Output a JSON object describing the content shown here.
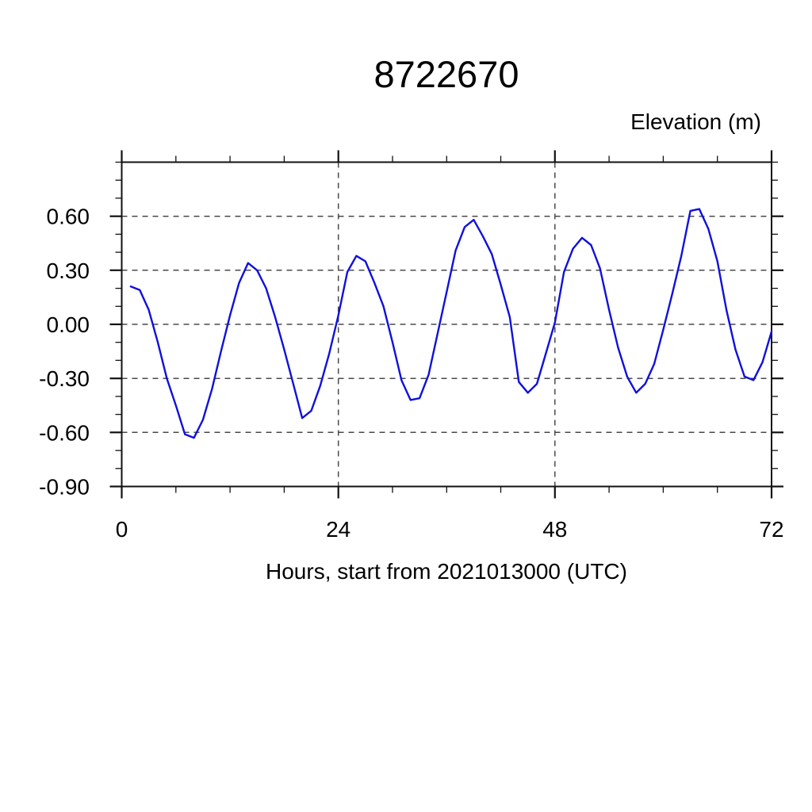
{
  "header": {
    "title": "8722670"
  },
  "colors": {
    "background": "#ffffff",
    "line": "#1010dd",
    "grid": "#4a4a4a",
    "frame": "#111111",
    "text": "#000000"
  },
  "chart_data": {
    "type": "line",
    "title": "8722670",
    "ylabel": "Elevation (m)",
    "xlabel": "Hours, start from 2021013000 (UTC)",
    "xlim": [
      0,
      72
    ],
    "ylim": [
      -0.9,
      0.9
    ],
    "x_major_ticks": [
      0,
      24,
      48,
      72
    ],
    "x_tick_labels": [
      "0",
      "24",
      "48",
      "72"
    ],
    "x_minor_tick_step": 6,
    "y_major_ticks": [
      0.6,
      0.3,
      0,
      -0.3,
      -0.6,
      -0.9
    ],
    "y_tick_labels": [
      "0.60",
      "0.30",
      "0.00",
      "-0.30",
      "-0.60",
      "-0.90"
    ],
    "y_minor_tick_step": 0.1,
    "grid": {
      "style": "dashed",
      "x_lines": [
        24,
        48
      ],
      "y_lines": [
        0.6,
        0.3,
        0,
        -0.3,
        -0.6
      ]
    },
    "legend": "none",
    "series": [
      {
        "name": "elevation",
        "color": "#1010dd",
        "x": [
          1,
          2,
          3,
          4,
          5,
          6,
          7,
          8,
          9,
          10,
          11,
          12,
          13,
          14,
          15,
          16,
          17,
          18,
          19,
          20,
          21,
          22,
          23,
          24,
          25,
          26,
          27,
          28,
          29,
          30,
          31,
          32,
          33,
          34,
          35,
          36,
          37,
          38,
          39,
          40,
          41,
          42,
          43,
          44,
          45,
          46,
          47,
          48,
          49,
          50,
          51,
          52,
          53,
          54,
          55,
          56,
          57,
          58,
          59,
          60,
          61,
          62,
          63,
          64,
          65,
          66,
          67,
          68,
          69,
          70,
          71,
          72
        ],
        "y": [
          0.21,
          0.19,
          0.08,
          -0.1,
          -0.3,
          -0.45,
          -0.61,
          -0.63,
          -0.53,
          -0.36,
          -0.15,
          0.05,
          0.23,
          0.34,
          0.3,
          0.2,
          0.04,
          -0.14,
          -0.33,
          -0.52,
          -0.48,
          -0.34,
          -0.16,
          0.05,
          0.29,
          0.38,
          0.35,
          0.23,
          0.1,
          -0.1,
          -0.31,
          -0.42,
          -0.41,
          -0.28,
          -0.05,
          0.18,
          0.41,
          0.54,
          0.58,
          0.49,
          0.39,
          0.22,
          0.04,
          -0.32,
          -0.38,
          -0.33,
          -0.16,
          0.01,
          0.29,
          0.42,
          0.48,
          0.44,
          0.31,
          0.08,
          -0.13,
          -0.29,
          -0.38,
          -0.33,
          -0.22,
          -0.03,
          0.17,
          0.38,
          0.63,
          0.64,
          0.53,
          0.35,
          0.08,
          -0.14,
          -0.29,
          -0.31,
          -0.21,
          -0.04
        ]
      }
    ]
  }
}
